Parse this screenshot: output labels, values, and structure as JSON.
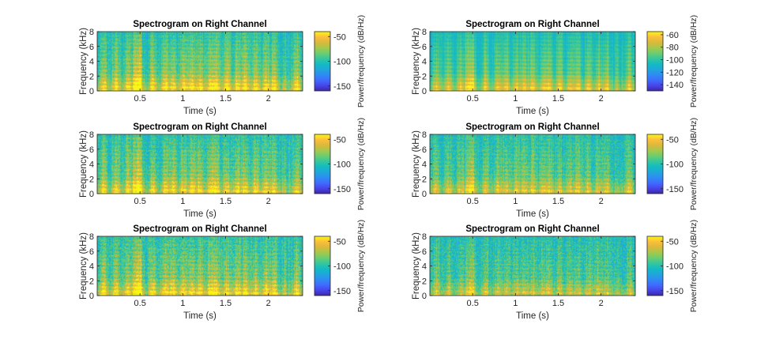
{
  "chart_data": [
    {
      "type": "heatmap",
      "title": "Spectrogram on Right Channel",
      "xlabel": "Time (s)",
      "ylabel": "Frequency (kHz)",
      "xlim": [
        0,
        2.4
      ],
      "ylim": [
        0,
        8
      ],
      "xticks": [
        0.5,
        1,
        1.5,
        2
      ],
      "yticks": [
        0,
        2,
        4,
        6,
        8
      ],
      "colorbar": {
        "label": "Power/frequency (dB/Hz)",
        "range": [
          -160,
          -40
        ],
        "ticks": [
          -50,
          -100,
          -150
        ]
      },
      "noise_level": 0.38,
      "speech_gain": 1.0
    },
    {
      "type": "heatmap",
      "title": "Spectrogram on Right Channel",
      "xlabel": "Time (s)",
      "ylabel": "Frequency (kHz)",
      "xlim": [
        0,
        2.4
      ],
      "ylim": [
        0,
        8
      ],
      "xticks": [
        0.5,
        1,
        1.5,
        2
      ],
      "yticks": [
        0,
        2,
        4,
        6,
        8
      ],
      "colorbar": {
        "label": "Power/frequency (dB/Hz)",
        "range": [
          -150,
          -55
        ],
        "ticks": [
          -60,
          -80,
          -100,
          -120,
          -140
        ]
      },
      "noise_level": 0.2,
      "speech_gain": 0.85
    },
    {
      "type": "heatmap",
      "title": "Spectrogram on Right Channel",
      "xlabel": "Time (s)",
      "ylabel": "Frequency (kHz)",
      "xlim": [
        0,
        2.4
      ],
      "ylim": [
        0,
        8
      ],
      "xticks": [
        0.5,
        1,
        1.5,
        2
      ],
      "yticks": [
        0,
        2,
        4,
        6,
        8
      ],
      "colorbar": {
        "label": "Power/frequency (dB/Hz)",
        "range": [
          -160,
          -40
        ],
        "ticks": [
          -50,
          -100,
          -150
        ]
      },
      "noise_level": 0.45,
      "speech_gain": 0.9
    },
    {
      "type": "heatmap",
      "title": "Spectrogram on Right Channel",
      "xlabel": "Time (s)",
      "ylabel": "Frequency (kHz)",
      "xlim": [
        0,
        2.4
      ],
      "ylim": [
        0,
        8
      ],
      "xticks": [
        0.5,
        1,
        1.5,
        2
      ],
      "yticks": [
        0,
        2,
        4,
        6,
        8
      ],
      "colorbar": {
        "label": "Power/frequency (dB/Hz)",
        "range": [
          -160,
          -40
        ],
        "ticks": [
          -50,
          -100,
          -150
        ]
      },
      "noise_level": 0.42,
      "speech_gain": 0.75
    },
    {
      "type": "heatmap",
      "title": "Spectrogram on Right Channel",
      "xlabel": "Time (s)",
      "ylabel": "Frequency (kHz)",
      "xlim": [
        0,
        2.4
      ],
      "ylim": [
        0,
        8
      ],
      "xticks": [
        0.5,
        1,
        1.5,
        2
      ],
      "yticks": [
        0,
        2,
        4,
        6,
        8
      ],
      "colorbar": {
        "label": "Power/frequency (dB/Hz)",
        "range": [
          -160,
          -40
        ],
        "ticks": [
          -50,
          -100,
          -150
        ]
      },
      "noise_level": 0.5,
      "speech_gain": 0.95
    },
    {
      "type": "heatmap",
      "title": "Spectrogram on Right Channel",
      "xlabel": "Time (s)",
      "ylabel": "Frequency (kHz)",
      "xlim": [
        0,
        2.4
      ],
      "ylim": [
        0,
        8
      ],
      "xticks": [
        0.5,
        1,
        1.5,
        2
      ],
      "yticks": [
        0,
        2,
        4,
        6,
        8
      ],
      "colorbar": {
        "label": "Power/frequency (dB/Hz)",
        "range": [
          -160,
          -40
        ],
        "ticks": [
          -50,
          -100,
          -150
        ]
      },
      "noise_level": 0.48,
      "speech_gain": 0.65
    }
  ],
  "colors": {
    "colormap": [
      "#3e26a8",
      "#4746eb",
      "#3f6cfe",
      "#2d8df2",
      "#1fa7db",
      "#13bbc2",
      "#36c79d",
      "#6ccd6f",
      "#a6c84b",
      "#dab93b",
      "#fdbe3d",
      "#f9f814"
    ],
    "axis": "#262626"
  }
}
